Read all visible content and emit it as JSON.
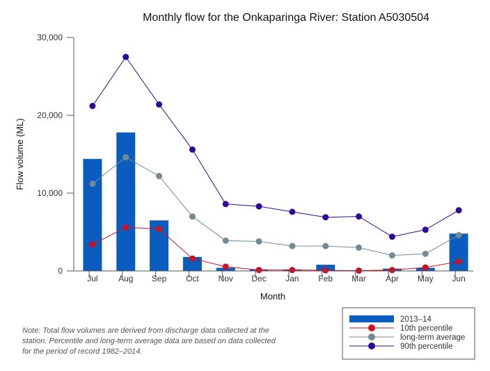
{
  "chart_data": {
    "type": "bar",
    "title": "Monthly flow for the Onkaparinga River: Station A5030504",
    "xlabel": "Month",
    "ylabel": "Flow volume (ML)",
    "ylim": [
      0,
      30000
    ],
    "yticks": [
      0,
      10000,
      20000,
      30000
    ],
    "ytick_labels": [
      "0",
      "10,000",
      "20,000",
      "30,000"
    ],
    "categories": [
      "Jul",
      "Aug",
      "Sep",
      "Oct",
      "Nov",
      "Dec",
      "Jan",
      "Feb",
      "Mar",
      "Apr",
      "May",
      "Jun"
    ],
    "series": [
      {
        "name": "2013–14",
        "kind": "bar",
        "color": "#0b5cbf",
        "values": [
          14400,
          17800,
          6500,
          1800,
          400,
          200,
          200,
          800,
          50,
          300,
          400,
          4800
        ]
      },
      {
        "name": "10th percentile",
        "kind": "line",
        "color": "#cc1122",
        "values": [
          3400,
          5600,
          5400,
          1600,
          550,
          120,
          120,
          80,
          40,
          120,
          450,
          1200
        ]
      },
      {
        "name": "long-term average",
        "kind": "line",
        "color": "#718a93",
        "values": [
          11200,
          14600,
          12200,
          7000,
          3900,
          3800,
          3200,
          3200,
          3000,
          2000,
          2200,
          4600
        ]
      },
      {
        "name": "90th percentile",
        "kind": "line",
        "color": "#2e0a9b",
        "values": [
          21200,
          27500,
          21400,
          15600,
          8600,
          8300,
          7600,
          6900,
          7000,
          4400,
          5300,
          7800
        ]
      }
    ],
    "legend_position": "bottom-right"
  },
  "note": "Note: Total flow volumes are derived from discharge data collected at the station. Percentile and long-term average data are based on data collected for the period of record 1982–2014."
}
